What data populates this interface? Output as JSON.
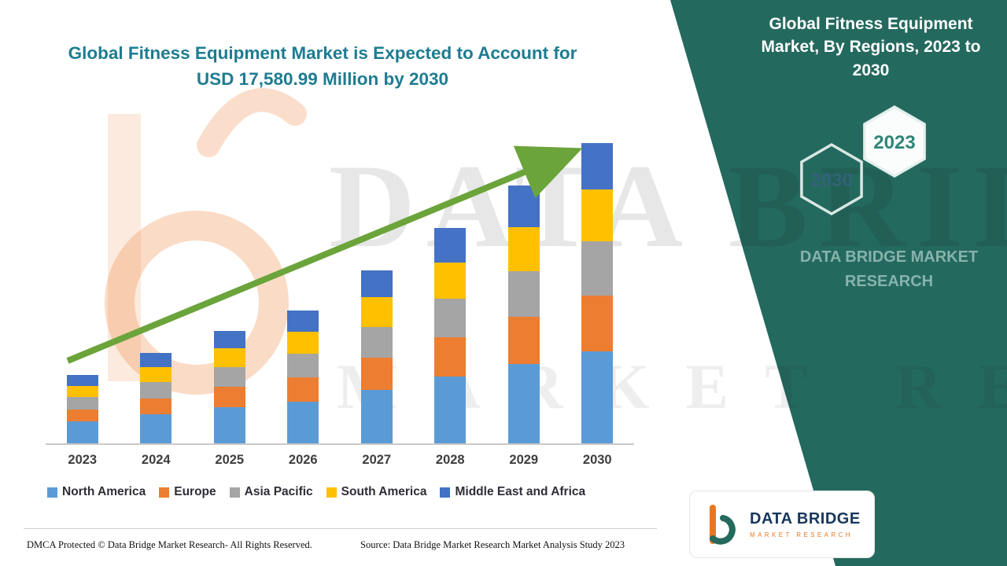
{
  "header": {
    "main_title_line1": "Global Fitness Equipment Market is Expected to Account for",
    "main_title_line2": "USD 17,580.99 Million by 2030"
  },
  "side_panel": {
    "title": "Global Fitness Equipment Market, By Regions, 2023 to 2030",
    "hex_front_year": "2023",
    "hex_back_year": "2030",
    "brand_line1": "DATA BRIDGE MARKET",
    "brand_line2": "RESEARCH"
  },
  "watermark": {
    "line1": "DATA BRIDGE",
    "line2": "MARKET RESEARCH"
  },
  "logo": {
    "title": "DATA BRIDGE",
    "subtitle": "MARKET RESEARCH"
  },
  "footer": {
    "dmca": "DMCA Protected © Data Bridge Market Research- All Rights Reserved.",
    "source": "Source: Data Bridge Market Research Market Analysis Study 2023"
  },
  "chart_data": {
    "type": "bar",
    "stacked": true,
    "title": "Global Fitness Equipment Market, By Regions, 2023 to 2030",
    "unit": "USD Million",
    "categories": [
      "2023",
      "2024",
      "2025",
      "2026",
      "2027",
      "2028",
      "2029",
      "2030"
    ],
    "series": [
      {
        "name": "North America",
        "color": "#5B9BD5",
        "values": [
          1300,
          1700,
          2100,
          2450,
          3150,
          3900,
          4650,
          5400
        ]
      },
      {
        "name": "Europe",
        "color": "#ED7D31",
        "values": [
          700,
          950,
          1200,
          1400,
          1850,
          2300,
          2750,
          3250
        ]
      },
      {
        "name": "Asia Pacific",
        "color": "#A5A5A5",
        "values": [
          700,
          950,
          1150,
          1400,
          1800,
          2250,
          2700,
          3180
        ]
      },
      {
        "name": "South America",
        "color": "#FFC000",
        "values": [
          650,
          850,
          1100,
          1300,
          1750,
          2150,
          2550,
          3050
        ]
      },
      {
        "name": "Middle East and Africa",
        "color": "#4472C4",
        "values": [
          650,
          850,
          1050,
          1250,
          1600,
          2000,
          2450,
          2700.99
        ]
      }
    ],
    "totals_estimated": [
      4000,
      5300,
      6600,
      7800,
      10150,
      12600,
      15100,
      17580.99
    ],
    "annotation_total_2030": "USD 17,580.99 Million",
    "ylim": [
      0,
      18000
    ],
    "legend_position": "bottom",
    "gridlines": false,
    "trend_arrow": true,
    "colors": {
      "accent_teal": "#24695e",
      "title_text": "#1d7c91",
      "arrow_green": "#6BA43A",
      "brand_orange": "#E87722",
      "brand_navy": "#17365D"
    }
  }
}
